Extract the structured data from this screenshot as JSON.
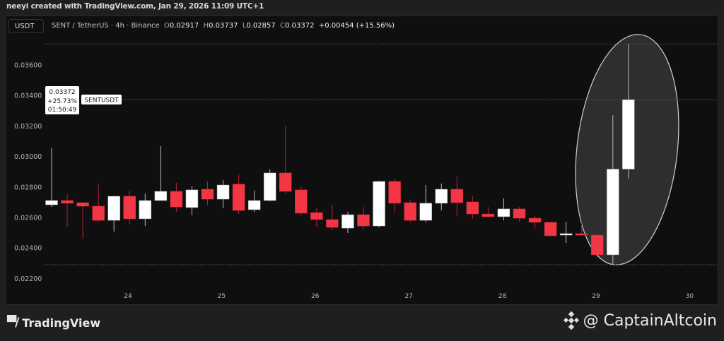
{
  "header": {
    "credit": "neeyi created with TradingView.com, Jan 29, 2026 11:09 UTC+1",
    "currency": "USDT",
    "symbol": "SENT / TetherUS · 4h · Binance",
    "open_label": "O",
    "open": "0.02917",
    "high_label": "H",
    "high": "0.03737",
    "low_label": "L",
    "low": "0.02857",
    "close_label": "C",
    "close": "0.03372",
    "change": "+0.00454 (+15.56%)"
  },
  "price_tag": {
    "price": "0.03372",
    "percent": "+25.73%",
    "countdown": "01:50:49",
    "symbol_label": "SENTUSDT"
  },
  "footer": {
    "brand": "TradingView",
    "watermark": "@ CaptainAltcoin"
  },
  "colors": {
    "up": "#ffffff",
    "down": "#f23645",
    "background": "#0f0f0f",
    "highlight": "#ffffff"
  },
  "chart_data": {
    "type": "candlestick",
    "title": "",
    "ylim": [
      0.0215,
      0.0385
    ],
    "yticks": [
      "0.03600",
      "0.03400",
      "0.03200",
      "0.03000",
      "0.02800",
      "0.02600",
      "0.02400",
      "0.02200"
    ],
    "xticks": [
      "24",
      "25",
      "26",
      "27",
      "28",
      "29",
      "30"
    ],
    "grid": false,
    "reference_lines": [
      0.03737,
      0.03372,
      0.0229
    ],
    "annotation": "ellipse around last two candles",
    "candles": [
      [
        0.02683,
        0.03054,
        0.02669,
        0.02711
      ],
      [
        0.02711,
        0.02753,
        0.0254,
        0.02693
      ],
      [
        0.02697,
        0.02697,
        0.02461,
        0.02674
      ],
      [
        0.02674,
        0.02818,
        0.02568,
        0.02581
      ],
      [
        0.02581,
        0.02739,
        0.02507,
        0.02739
      ],
      [
        0.02739,
        0.02776,
        0.02558,
        0.02591
      ],
      [
        0.02591,
        0.02757,
        0.02544,
        0.02711
      ],
      [
        0.02711,
        0.03068,
        0.02711,
        0.02771
      ],
      [
        0.02771,
        0.02827,
        0.02637,
        0.02669
      ],
      [
        0.02665,
        0.02804,
        0.02614,
        0.02781
      ],
      [
        0.02785,
        0.02836,
        0.02683,
        0.0272
      ],
      [
        0.0272,
        0.02845,
        0.0266,
        0.02813
      ],
      [
        0.02818,
        0.02882,
        0.02623,
        0.02646
      ],
      [
        0.02651,
        0.02776,
        0.02637,
        0.02711
      ],
      [
        0.02711,
        0.02915,
        0.02706,
        0.02892
      ],
      [
        0.02892,
        0.03202,
        0.02757,
        0.02771
      ],
      [
        0.02781,
        0.02804,
        0.02614,
        0.02628
      ],
      [
        0.02632,
        0.0266,
        0.0254,
        0.02586
      ],
      [
        0.02586,
        0.02683,
        0.02517,
        0.02535
      ],
      [
        0.0253,
        0.02637,
        0.02498,
        0.02618
      ],
      [
        0.02618,
        0.02669,
        0.02521,
        0.02544
      ],
      [
        0.02544,
        0.02841,
        0.02535,
        0.02836
      ],
      [
        0.02836,
        0.02855,
        0.02632,
        0.02693
      ],
      [
        0.02697,
        0.02716,
        0.02568,
        0.02581
      ],
      [
        0.02581,
        0.02813,
        0.02568,
        0.02693
      ],
      [
        0.02693,
        0.02822,
        0.02646,
        0.02785
      ],
      [
        0.02785,
        0.02869,
        0.02609,
        0.02697
      ],
      [
        0.02702,
        0.02739,
        0.02591,
        0.02623
      ],
      [
        0.02623,
        0.02669,
        0.026,
        0.02605
      ],
      [
        0.02605,
        0.02725,
        0.02581,
        0.02656
      ],
      [
        0.02656,
        0.02669,
        0.02572,
        0.02595
      ],
      [
        0.02595,
        0.02609,
        0.02526,
        0.02568
      ],
      [
        0.02568,
        0.02572,
        0.02475,
        0.0248
      ],
      [
        0.02484,
        0.02572,
        0.02433,
        0.02494
      ],
      [
        0.02494,
        0.02577,
        0.02484,
        0.02484
      ],
      [
        0.02484,
        0.02498,
        0.02355,
        0.02355
      ],
      [
        0.02355,
        0.03271,
        0.0229,
        0.02917
      ],
      [
        0.02917,
        0.03737,
        0.02857,
        0.03372
      ]
    ]
  }
}
